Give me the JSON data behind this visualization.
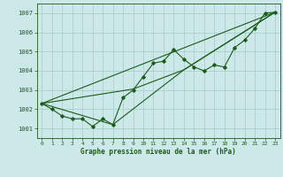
{
  "xlabel": "Graphe pression niveau de la mer (hPa)",
  "xlim": [
    -0.5,
    23.5
  ],
  "ylim": [
    1000.5,
    1007.5
  ],
  "yticks": [
    1001,
    1002,
    1003,
    1004,
    1005,
    1006,
    1007
  ],
  "xticks": [
    0,
    1,
    2,
    3,
    4,
    5,
    6,
    7,
    8,
    9,
    10,
    11,
    12,
    13,
    14,
    15,
    16,
    17,
    18,
    19,
    20,
    21,
    22,
    23
  ],
  "bg_color": "#cce8e8",
  "grid_color": "#aacfcf",
  "line_color": "#1a5c1a",
  "main_line": [
    [
      0,
      1002.3
    ],
    [
      1,
      1002.0
    ],
    [
      2,
      1001.65
    ],
    [
      3,
      1001.5
    ],
    [
      4,
      1001.5
    ],
    [
      5,
      1001.1
    ],
    [
      6,
      1001.5
    ],
    [
      7,
      1001.2
    ],
    [
      8,
      1002.6
    ],
    [
      9,
      1003.0
    ],
    [
      10,
      1003.7
    ],
    [
      11,
      1004.4
    ],
    [
      12,
      1004.5
    ],
    [
      13,
      1005.1
    ],
    [
      14,
      1004.6
    ],
    [
      15,
      1004.2
    ],
    [
      16,
      1004.0
    ],
    [
      17,
      1004.3
    ],
    [
      18,
      1004.2
    ],
    [
      19,
      1005.2
    ],
    [
      20,
      1005.6
    ],
    [
      21,
      1006.2
    ],
    [
      22,
      1007.0
    ],
    [
      23,
      1007.05
    ]
  ],
  "trend_line1": [
    [
      0,
      1002.3
    ],
    [
      23,
      1007.05
    ]
  ],
  "trend_line2": [
    [
      0,
      1002.3
    ],
    [
      9,
      1003.05
    ],
    [
      14,
      1004.05
    ],
    [
      23,
      1007.05
    ]
  ],
  "trend_line3": [
    [
      0,
      1002.3
    ],
    [
      7,
      1001.2
    ],
    [
      14,
      1004.05
    ],
    [
      23,
      1007.05
    ]
  ]
}
